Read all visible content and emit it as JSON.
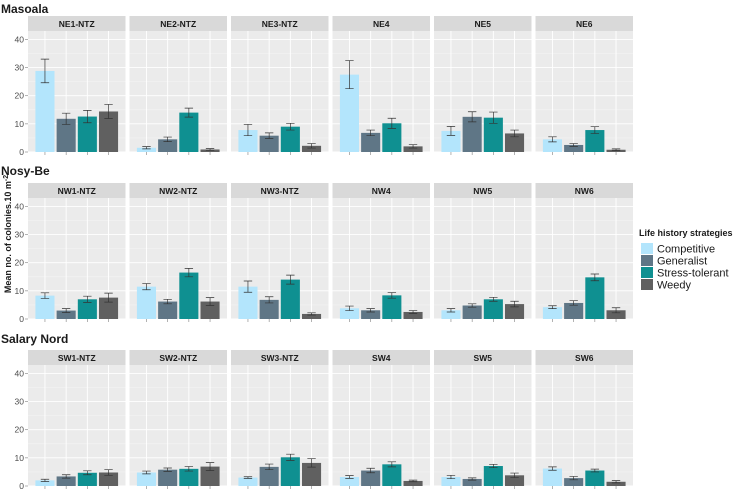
{
  "chart_data": {
    "type": "bar",
    "y_axis_label": "Mean no. of colonies.10 m",
    "y_axis_label_superscript": "-2",
    "ylim": [
      0,
      43
    ],
    "y_ticks": [
      0,
      10,
      20,
      30,
      40
    ],
    "legend": {
      "title": "Life history strategies",
      "position": "right",
      "entries": [
        {
          "name": "Competitive",
          "color": "#b3e5fc"
        },
        {
          "name": "Generalist",
          "color": "#5f7686"
        },
        {
          "name": "Stress-tolerant",
          "color": "#0f9091"
        },
        {
          "name": "Weedy",
          "color": "#606060"
        }
      ]
    },
    "categories": [
      "Competitive",
      "Generalist",
      "Stress-tolerant",
      "Weedy"
    ],
    "regions": [
      {
        "name": "Masoala",
        "sites": [
          {
            "name": "NE1-NTZ",
            "values": [
              28.8,
              11.8,
              12.6,
              14.4
            ],
            "errors": [
              4.2,
              2.0,
              2.2,
              2.5
            ]
          },
          {
            "name": "NE2-NTZ",
            "values": [
              1.5,
              4.5,
              14.0,
              0.9
            ],
            "errors": [
              0.4,
              0.8,
              1.6,
              0.3
            ]
          },
          {
            "name": "NE3-NTZ",
            "values": [
              7.8,
              5.8,
              9.0,
              2.2
            ],
            "errors": [
              2.0,
              1.0,
              1.2,
              0.8
            ]
          },
          {
            "name": "NE4",
            "values": [
              27.5,
              6.8,
              10.2,
              2.0
            ],
            "errors": [
              5.0,
              1.0,
              1.8,
              0.6
            ]
          },
          {
            "name": "NE5",
            "values": [
              7.5,
              12.5,
              12.2,
              6.6
            ],
            "errors": [
              1.6,
              1.8,
              2.0,
              1.2
            ]
          },
          {
            "name": "NE6",
            "values": [
              4.5,
              2.5,
              7.8,
              0.8
            ],
            "errors": [
              0.9,
              0.5,
              1.2,
              0.3
            ]
          }
        ]
      },
      {
        "name": "Nosy-Be",
        "sites": [
          {
            "name": "NW1-NTZ",
            "values": [
              8.3,
              3.0,
              7.0,
              7.6
            ],
            "errors": [
              1.0,
              0.7,
              1.1,
              1.6
            ]
          },
          {
            "name": "NW2-NTZ",
            "values": [
              11.5,
              6.2,
              16.5,
              6.2
            ],
            "errors": [
              1.1,
              0.8,
              1.5,
              1.4
            ]
          },
          {
            "name": "NW3-NTZ",
            "values": [
              11.5,
              6.8,
              14.0,
              1.8
            ],
            "errors": [
              2.0,
              1.1,
              1.6,
              0.4
            ]
          },
          {
            "name": "NW4",
            "values": [
              3.8,
              3.1,
              8.4,
              2.5
            ],
            "errors": [
              0.8,
              0.6,
              1.0,
              0.5
            ]
          },
          {
            "name": "NW5",
            "values": [
              3.1,
              4.8,
              7.0,
              5.3
            ],
            "errors": [
              0.6,
              0.6,
              0.7,
              1.0
            ]
          },
          {
            "name": "NW6",
            "values": [
              4.2,
              5.7,
              14.8,
              3.1
            ],
            "errors": [
              0.5,
              0.8,
              1.2,
              0.9
            ]
          }
        ]
      },
      {
        "name": "Salary Nord",
        "sites": [
          {
            "name": "SW1-NTZ",
            "values": [
              2.0,
              3.4,
              4.7,
              4.8
            ],
            "errors": [
              0.4,
              0.6,
              0.7,
              1.0
            ]
          },
          {
            "name": "SW2-NTZ",
            "values": [
              4.8,
              5.8,
              6.1,
              6.9
            ],
            "errors": [
              0.5,
              0.6,
              0.8,
              1.4
            ]
          },
          {
            "name": "SW3-NTZ",
            "values": [
              3.0,
              6.8,
              10.2,
              8.2
            ],
            "errors": [
              0.3,
              1.0,
              1.1,
              1.5
            ]
          },
          {
            "name": "SW4",
            "values": [
              3.2,
              5.5,
              7.7,
              1.8
            ],
            "errors": [
              0.5,
              0.8,
              0.9,
              0.3
            ]
          },
          {
            "name": "SW5",
            "values": [
              3.2,
              2.5,
              7.1,
              3.8
            ],
            "errors": [
              0.6,
              0.4,
              0.6,
              0.8
            ]
          },
          {
            "name": "SW6",
            "values": [
              6.2,
              2.8,
              5.5,
              1.5
            ],
            "errors": [
              0.6,
              0.6,
              0.5,
              0.4
            ]
          }
        ]
      }
    ]
  }
}
